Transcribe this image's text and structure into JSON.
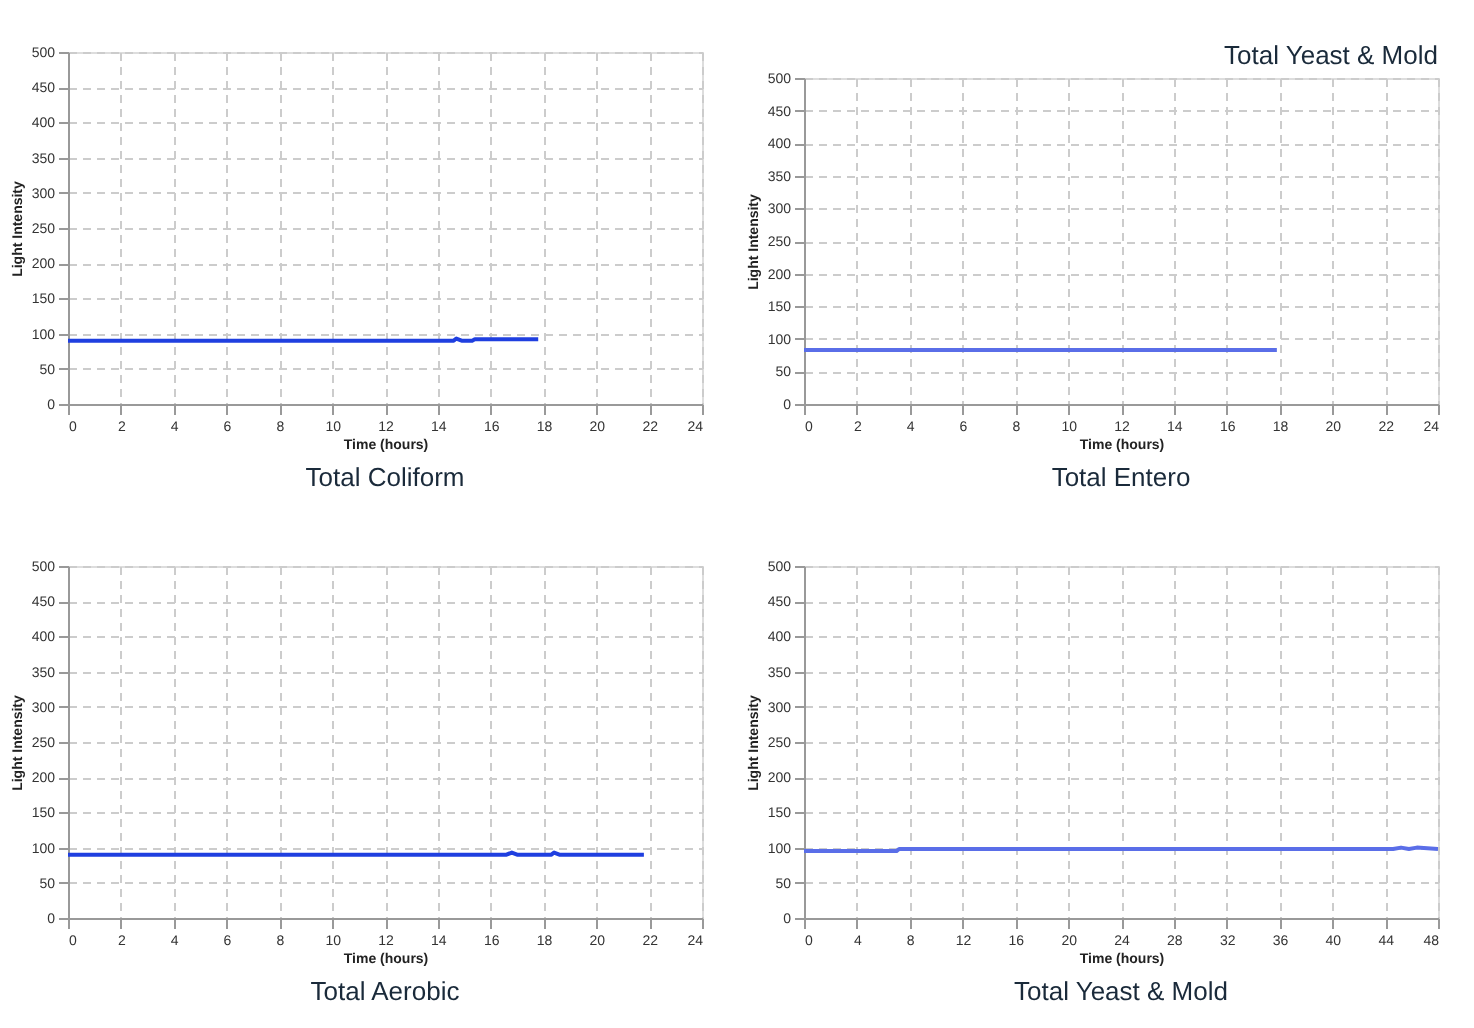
{
  "chart_data": [
    {
      "type": "line",
      "xlabel": "Time (hours)",
      "ylabel": "Light Intensity",
      "annotations": [
        "Total Coliform"
      ],
      "xlim": [
        0,
        24
      ],
      "xticks": [
        0,
        2,
        4,
        6,
        8,
        10,
        12,
        14,
        16,
        18,
        20,
        22,
        24
      ],
      "ylim": [
        0,
        500
      ],
      "yticks": [
        0,
        50,
        100,
        150,
        200,
        250,
        300,
        350,
        400,
        450,
        500
      ],
      "grid": true,
      "marker": "none",
      "line_style": "solid",
      "series": [
        {
          "color": "#1f3fe0",
          "x": [
            0,
            14.6,
            14.7,
            14.9,
            15.3,
            15.4,
            17.8
          ],
          "values": [
            90,
            90,
            93,
            90,
            90,
            92,
            92
          ]
        }
      ]
    },
    {
      "type": "line",
      "xlabel": "Time (hours)",
      "ylabel": "Light Intensity",
      "annotations": [
        "Total Yeast & Mold",
        "Total Entero"
      ],
      "xlim": [
        0,
        24
      ],
      "xticks": [
        0,
        2,
        4,
        6,
        8,
        10,
        12,
        14,
        16,
        18,
        20,
        22,
        24
      ],
      "ylim": [
        0,
        500
      ],
      "yticks": [
        0,
        50,
        100,
        150,
        200,
        250,
        300,
        350,
        400,
        450,
        500
      ],
      "grid": true,
      "marker": "none",
      "line_style": "solid",
      "series": [
        {
          "color": "#5a6ee8",
          "x": [
            0,
            17.9
          ],
          "values": [
            83,
            83
          ]
        }
      ]
    },
    {
      "type": "line",
      "xlabel": "Time (hours)",
      "ylabel": "Light Intensity",
      "annotations": [
        "Total Aerobic"
      ],
      "xlim": [
        0,
        24
      ],
      "xticks": [
        0,
        2,
        4,
        6,
        8,
        10,
        12,
        14,
        16,
        18,
        20,
        22,
        24
      ],
      "ylim": [
        0,
        500
      ],
      "yticks": [
        0,
        50,
        100,
        150,
        200,
        250,
        300,
        350,
        400,
        450,
        500
      ],
      "grid": true,
      "marker": "none",
      "line_style": "solid",
      "series": [
        {
          "color": "#1f3fe0",
          "x": [
            0,
            16.6,
            16.8,
            17.0,
            18.3,
            18.4,
            18.6,
            21.8
          ],
          "values": [
            90,
            90,
            93,
            90,
            90,
            93,
            90,
            90
          ]
        }
      ]
    },
    {
      "type": "line",
      "xlabel": "Time (hours)",
      "ylabel": "Light Intensity",
      "annotations": [
        "Total Yeast & Mold"
      ],
      "xlim": [
        0,
        48
      ],
      "xticks": [
        0,
        4,
        8,
        12,
        16,
        20,
        24,
        28,
        32,
        36,
        40,
        44,
        48
      ],
      "ylim": [
        0,
        500
      ],
      "yticks": [
        0,
        50,
        100,
        150,
        200,
        250,
        300,
        350,
        400,
        450,
        500
      ],
      "grid": true,
      "marker": "none",
      "line_style": "solid",
      "series": [
        {
          "color": "#5a6ee8",
          "x": [
            0,
            7,
            7.2,
            44.6,
            45.2,
            45.8,
            46.4,
            48
          ],
          "values": [
            95,
            95,
            98,
            98,
            100,
            98,
            100,
            98
          ]
        }
      ]
    }
  ]
}
